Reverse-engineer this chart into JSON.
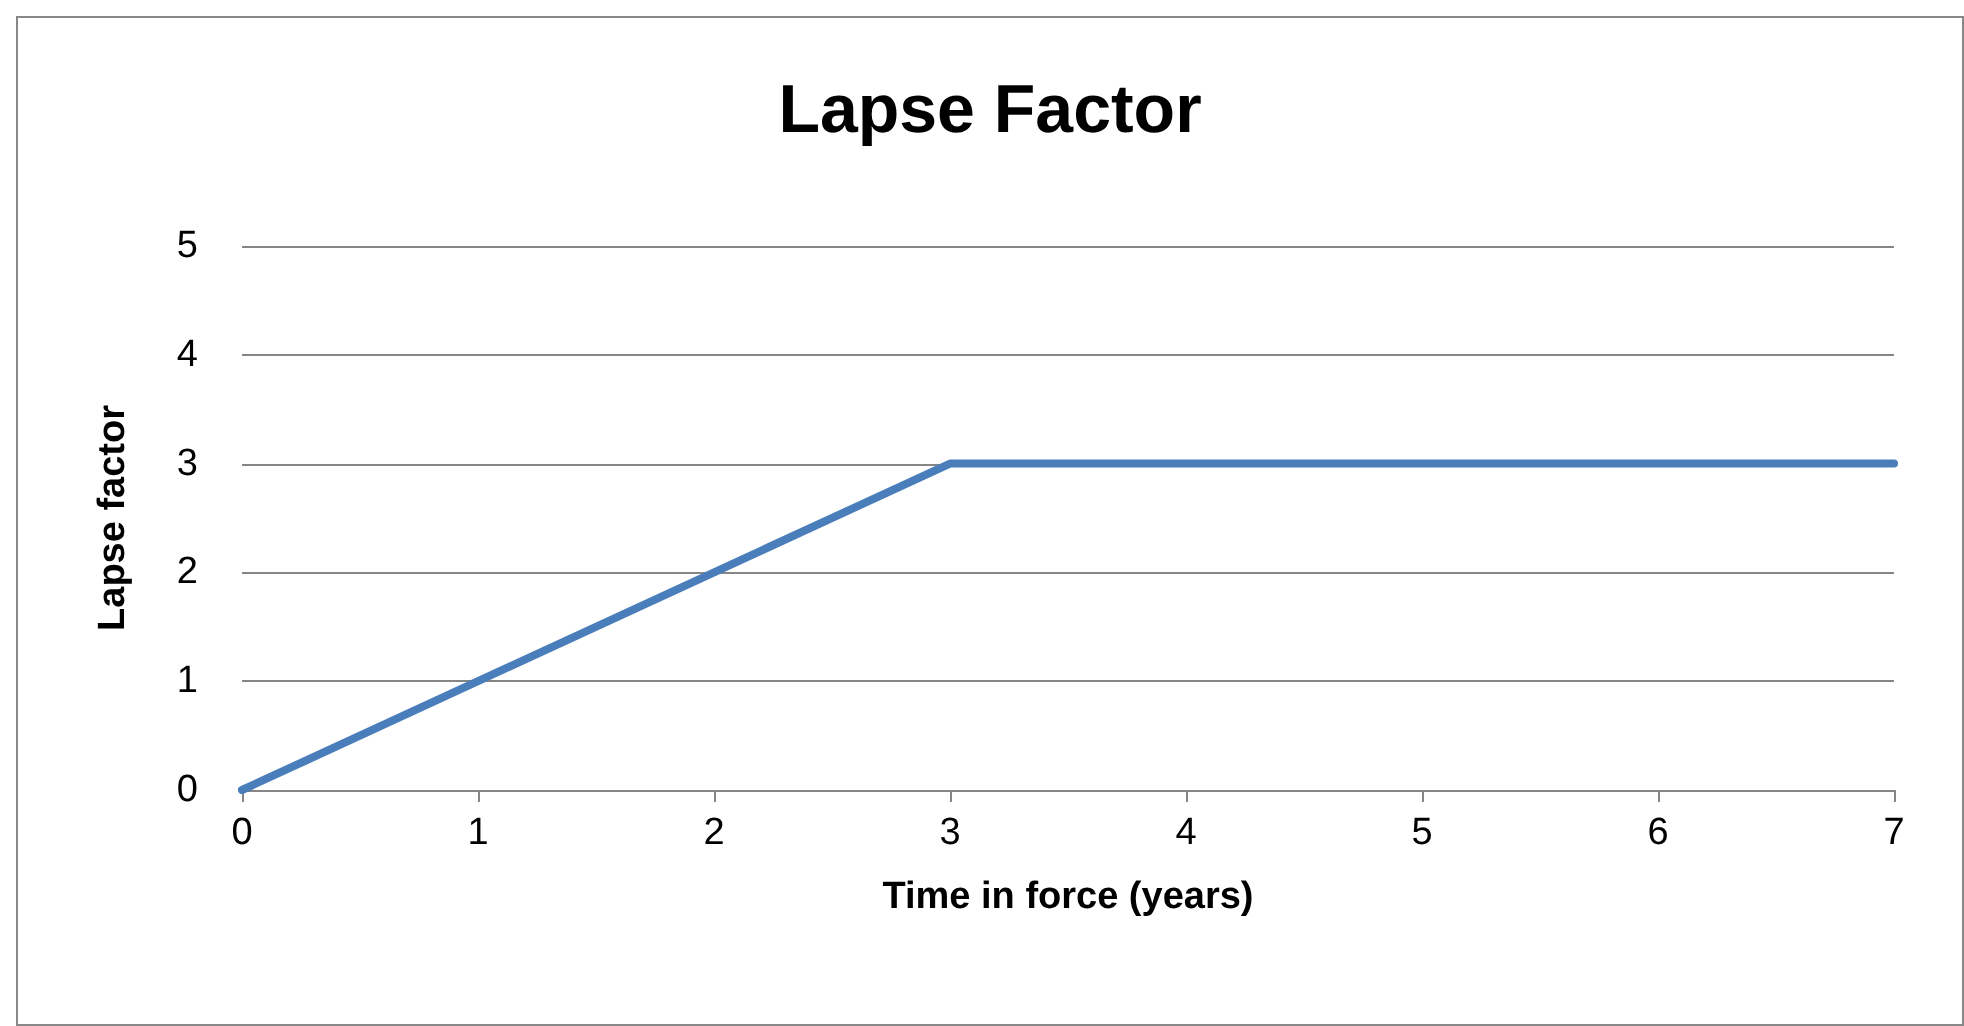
{
  "chart_data": {
    "type": "line",
    "title": "Lapse Factor",
    "xlabel": "Time in force (years)",
    "ylabel": "Lapse factor",
    "series": [
      {
        "color": "#4a7ebb",
        "x": [
          0,
          3,
          7
        ],
        "values": [
          0,
          3,
          3
        ]
      }
    ],
    "xlim": [
      0,
      7
    ],
    "xticks": [
      0,
      1,
      2,
      3,
      4,
      5,
      6,
      7
    ],
    "ylim": [
      0,
      5
    ],
    "yticks": [
      0,
      1,
      2,
      3,
      4,
      5
    ],
    "grid": "y",
    "marker": "none",
    "line_style": "solid"
  }
}
